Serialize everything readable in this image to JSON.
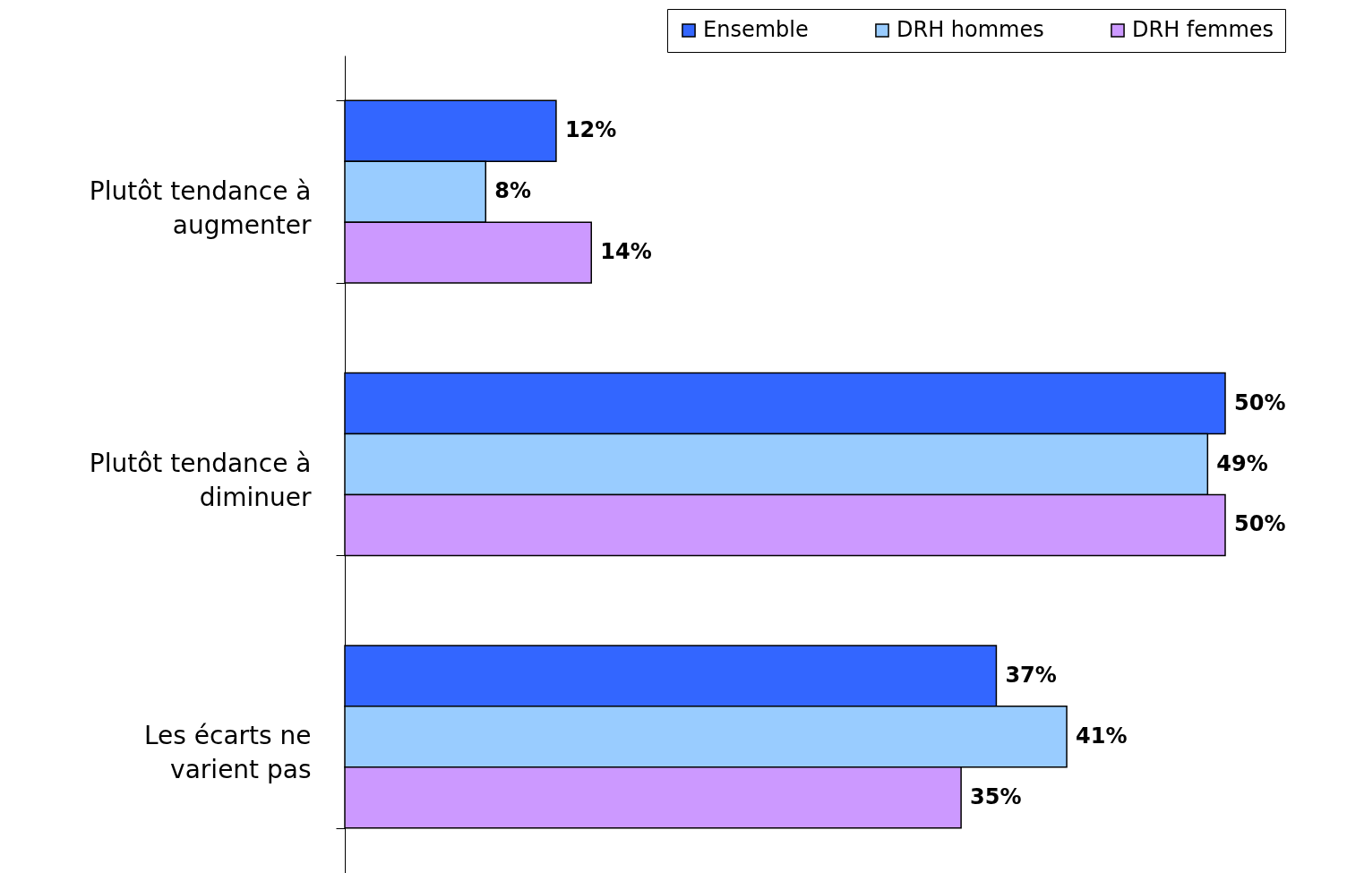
{
  "chart_data": {
    "type": "bar",
    "orientation": "horizontal",
    "categories": [
      "Plutôt tendance à augmenter",
      "Plutôt tendance à diminuer",
      "Les écarts ne varient pas"
    ],
    "series": [
      {
        "name": "Ensemble",
        "color": "#3366ff",
        "values": [
          12,
          50,
          37
        ],
        "value_labels": [
          "12%",
          "50%",
          "37%"
        ]
      },
      {
        "name": "DRH hommes",
        "color": "#99ccff",
        "values": [
          8,
          49,
          41
        ],
        "value_labels": [
          "8%",
          "49%",
          "41%"
        ]
      },
      {
        "name": "DRH femmes",
        "color": "#cc99ff",
        "values": [
          14,
          50,
          35
        ],
        "value_labels": [
          "14%",
          "50%",
          "35%"
        ]
      }
    ],
    "legend": "top right",
    "grid": false
  }
}
